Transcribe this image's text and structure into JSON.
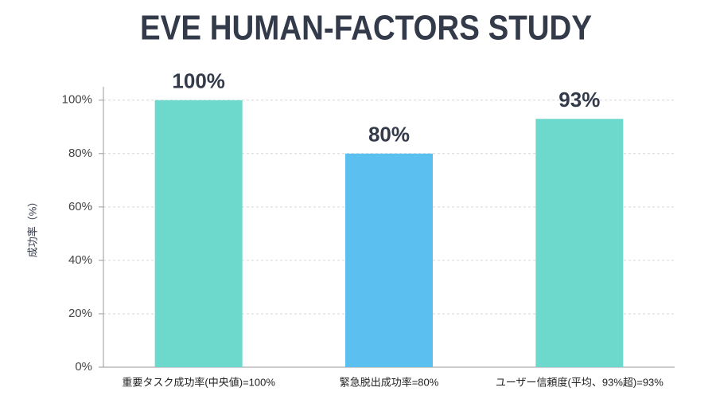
{
  "chart_data": {
    "type": "bar",
    "title": "EVE HUMAN-FACTORS STUDY",
    "y_label": "成功率（%）",
    "categories": [
      "重要タスク成功率(中央値)=100%",
      "緊急脱出成功率=80%",
      "ユーザー信頼度(平均、93%超)=93%"
    ],
    "values": [
      100,
      80,
      93
    ],
    "value_labels": [
      "100%",
      "80%",
      "93%"
    ],
    "colors": [
      "#6dd9cc",
      "#5bbff0",
      "#6dd9cc"
    ],
    "ylim": [
      0,
      105
    ],
    "yticks": [
      {
        "value": 0,
        "label": "0%"
      },
      {
        "value": 20,
        "label": "20%"
      },
      {
        "value": 40,
        "label": "40%"
      },
      {
        "value": 60,
        "label": "60%"
      },
      {
        "value": 80,
        "label": "80%"
      },
      {
        "value": 100,
        "label": "100%"
      }
    ],
    "grid": true
  }
}
